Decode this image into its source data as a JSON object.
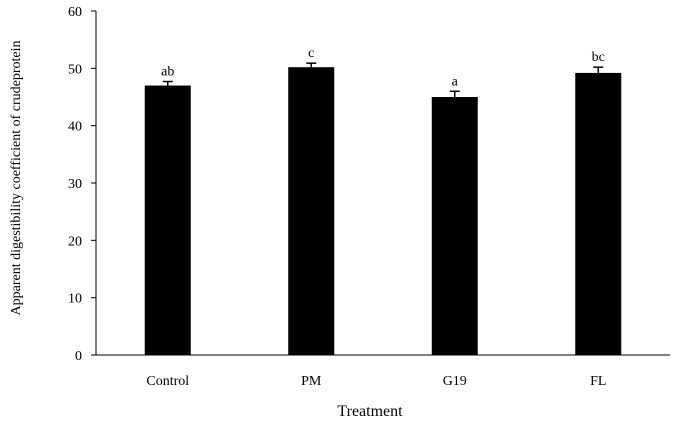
{
  "colors": {
    "bar": "#000000",
    "axis": "#000000",
    "text": "#000000",
    "background": "#ffffff"
  },
  "chart_data": {
    "type": "bar",
    "title": "",
    "xlabel": "Treatment",
    "ylabel": "Apparent digestibility coefficient  of crudeprotein",
    "categories": [
      "Control",
      "PM",
      "G19",
      "FL"
    ],
    "values": [
      47.0,
      50.2,
      45.0,
      49.2
    ],
    "errors": [
      0.7,
      0.7,
      1.0,
      1.0
    ],
    "annotations": [
      "ab",
      "c",
      "a",
      "bc"
    ],
    "ylim": [
      0,
      60
    ],
    "yticks": [
      0,
      10,
      20,
      30,
      40,
      50,
      60
    ],
    "grid": false,
    "legend": "none"
  }
}
